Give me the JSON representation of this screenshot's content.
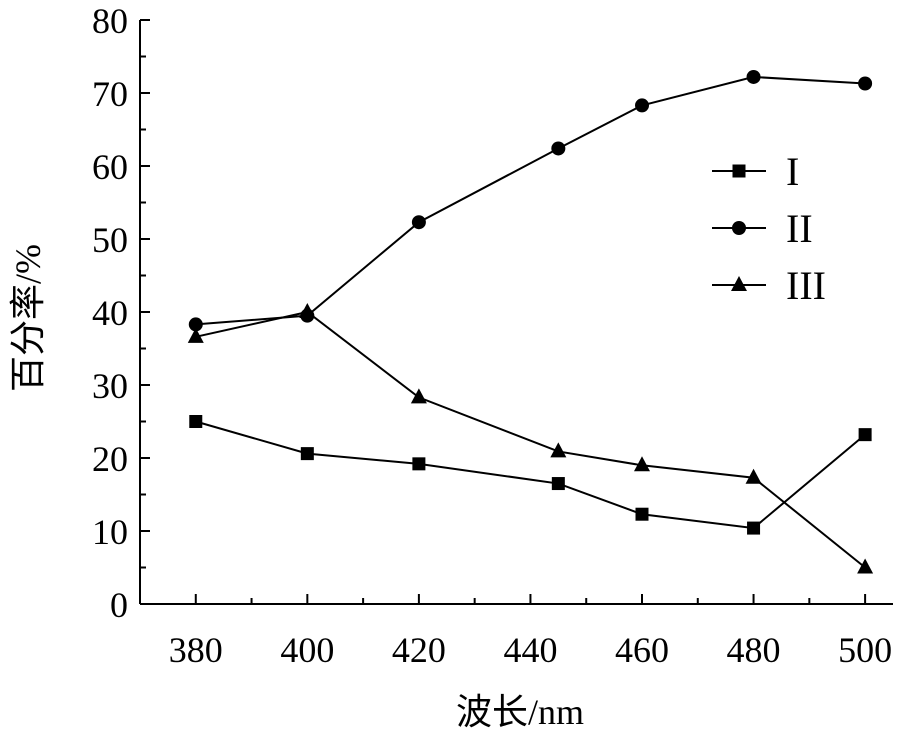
{
  "chart_data": {
    "type": "line",
    "title": "",
    "xlabel": "波长/nm",
    "ylabel": "百分率/%",
    "x": [
      380,
      400,
      420,
      445,
      460,
      480,
      500
    ],
    "x_ticks": [
      380,
      400,
      420,
      440,
      460,
      480,
      500
    ],
    "xlim": [
      370,
      505
    ],
    "y_ticks": [
      0,
      10,
      20,
      30,
      40,
      50,
      60,
      70,
      80
    ],
    "ylim": [
      0,
      80
    ],
    "grid": false,
    "legend_position": "right",
    "series": [
      {
        "name": "I",
        "marker": "square",
        "values": [
          25.0,
          20.6,
          19.2,
          16.5,
          12.3,
          10.4,
          23.2
        ]
      },
      {
        "name": "II",
        "marker": "circle",
        "values": [
          38.3,
          39.5,
          52.3,
          62.4,
          68.3,
          72.2,
          71.3
        ]
      },
      {
        "name": "III",
        "marker": "triangle",
        "values": [
          36.6,
          40.0,
          28.3,
          20.9,
          19.0,
          17.3,
          5.0
        ]
      }
    ],
    "colors": {
      "line": "#000000",
      "axis": "#000000"
    }
  }
}
